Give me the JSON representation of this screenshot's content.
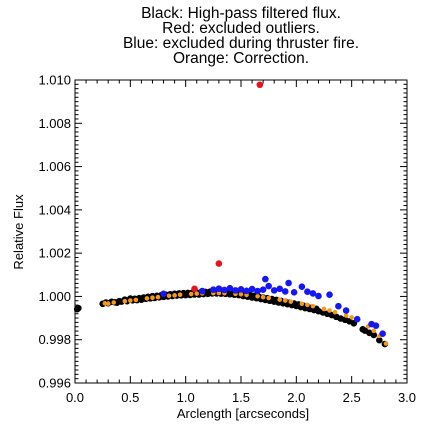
{
  "chart_data": {
    "type": "scatter",
    "title_lines": [
      "Black: High-pass filtered flux.",
      "Red: excluded outliers.",
      "Blue: excluded during thruster fire.",
      "Orange: Correction."
    ],
    "xlabel": "Arclength [arcseconds]",
    "ylabel": "Relative Flux",
    "xlim": [
      0.0,
      3.0
    ],
    "ylim": [
      0.996,
      1.01
    ],
    "x_ticks": [
      "0.0",
      "0.5",
      "1.0",
      "1.5",
      "2.0",
      "2.5",
      "3.0"
    ],
    "x_tick_values": [
      0.0,
      0.5,
      1.0,
      1.5,
      2.0,
      2.5,
      3.0
    ],
    "y_ticks": [
      "0.996",
      "0.998",
      "1.000",
      "1.002",
      "1.004",
      "1.006",
      "1.008",
      "1.010"
    ],
    "y_tick_values": [
      0.996,
      0.998,
      1.0,
      1.002,
      1.004,
      1.006,
      1.008,
      1.01
    ],
    "grid": false,
    "colors": {
      "high_pass": "#000000",
      "outliers": "#e8141b",
      "thruster": "#1717f2",
      "correction": "#f39a1c"
    },
    "series": [
      {
        "key": "high_pass",
        "points": [
          [
            0.02,
            0.99941
          ],
          [
            0.03,
            0.99946
          ],
          [
            0.25,
            0.99966
          ],
          [
            0.28,
            0.99972
          ],
          [
            0.3,
            0.99969
          ],
          [
            0.33,
            0.99975
          ],
          [
            0.36,
            0.99973
          ],
          [
            0.38,
            0.99971
          ],
          [
            0.4,
            0.99978
          ],
          [
            0.42,
            0.99976
          ],
          [
            0.45,
            0.99985
          ],
          [
            0.47,
            0.99978
          ],
          [
            0.5,
            0.9999
          ],
          [
            0.52,
            0.99982
          ],
          [
            0.54,
            0.99989
          ],
          [
            0.56,
            0.99983
          ],
          [
            0.58,
            0.99992
          ],
          [
            0.6,
            0.99985
          ],
          [
            0.62,
            0.99995
          ],
          [
            0.64,
            0.99989
          ],
          [
            0.66,
            0.99998
          ],
          [
            0.68,
            0.99991
          ],
          [
            0.7,
            1.00001
          ],
          [
            0.72,
            0.99993
          ],
          [
            0.74,
            1.00003
          ],
          [
            0.76,
            0.99996
          ],
          [
            0.78,
            1.00006
          ],
          [
            0.8,
            0.99998
          ],
          [
            0.82,
            1.00008
          ],
          [
            0.84,
            1.0
          ],
          [
            0.86,
            1.0001
          ],
          [
            0.88,
            1.00002
          ],
          [
            0.9,
            1.00012
          ],
          [
            0.92,
            1.00004
          ],
          [
            0.94,
            1.00014
          ],
          [
            0.96,
            1.00005
          ],
          [
            0.98,
            1.00015
          ],
          [
            1.0,
            1.00006
          ],
          [
            1.02,
            1.00016
          ],
          [
            1.04,
            1.00007
          ],
          [
            1.06,
            1.00017
          ],
          [
            1.08,
            1.00009
          ],
          [
            1.1,
            1.00018
          ],
          [
            1.12,
            1.00009
          ],
          [
            1.14,
            1.0002
          ],
          [
            1.16,
            1.00011
          ],
          [
            1.18,
            1.00021
          ],
          [
            1.2,
            1.00012
          ],
          [
            1.22,
            1.00022
          ],
          [
            1.24,
            1.00014
          ],
          [
            1.26,
            1.00023
          ],
          [
            1.28,
            1.00014
          ],
          [
            1.3,
            1.00022
          ],
          [
            1.32,
            1.00013
          ],
          [
            1.34,
            1.00021
          ],
          [
            1.36,
            1.00012
          ],
          [
            1.38,
            1.0002
          ],
          [
            1.4,
            1.0001
          ],
          [
            1.42,
            1.00019
          ],
          [
            1.44,
            1.00008
          ],
          [
            1.46,
            1.00016
          ],
          [
            1.48,
            1.00006
          ],
          [
            1.5,
            1.00014
          ],
          [
            1.52,
            1.00002
          ],
          [
            1.54,
            1.0001
          ],
          [
            1.56,
            0.99999
          ],
          [
            1.58,
            1.00007
          ],
          [
            1.6,
            0.99995
          ],
          [
            1.62,
            1.00003
          ],
          [
            1.64,
            0.99992
          ],
          [
            1.66,
            0.99999
          ],
          [
            1.68,
            0.99988
          ],
          [
            1.7,
            0.99995
          ],
          [
            1.72,
            0.99984
          ],
          [
            1.74,
            0.99992
          ],
          [
            1.76,
            0.9998
          ],
          [
            1.78,
            0.99988
          ],
          [
            1.8,
            0.99976
          ],
          [
            1.82,
            0.99984
          ],
          [
            1.84,
            0.99972
          ],
          [
            1.86,
            0.9998
          ],
          [
            1.88,
            0.99968
          ],
          [
            1.9,
            0.99976
          ],
          [
            1.92,
            0.99964
          ],
          [
            1.94,
            0.99971
          ],
          [
            1.96,
            0.9996
          ],
          [
            1.98,
            0.99967
          ],
          [
            2.0,
            0.99956
          ],
          [
            2.02,
            0.99963
          ],
          [
            2.04,
            0.99951
          ],
          [
            2.06,
            0.99958
          ],
          [
            2.08,
            0.99946
          ],
          [
            2.1,
            0.99953
          ],
          [
            2.12,
            0.99942
          ],
          [
            2.14,
            0.99948
          ],
          [
            2.16,
            0.99937
          ],
          [
            2.18,
            0.99943
          ],
          [
            2.2,
            0.99932
          ],
          [
            2.24,
            0.99926
          ],
          [
            2.28,
            0.9992
          ],
          [
            2.32,
            0.99914
          ],
          [
            2.36,
            0.99906
          ],
          [
            2.4,
            0.99898
          ],
          [
            2.44,
            0.99892
          ],
          [
            2.48,
            0.99885
          ],
          [
            2.52,
            0.99876
          ],
          [
            2.6,
            0.99848
          ],
          [
            2.62,
            0.99842
          ],
          [
            2.66,
            0.99832
          ],
          [
            2.7,
            0.99822
          ],
          [
            2.75,
            0.99798
          ],
          [
            2.8,
            0.9978
          ]
        ]
      },
      {
        "key": "correction",
        "points": [
          [
            0.27,
            0.99968
          ],
          [
            0.35,
            0.99972
          ],
          [
            0.45,
            0.99978
          ],
          [
            0.55,
            0.99984
          ],
          [
            0.65,
            0.99991
          ],
          [
            0.75,
            0.99997
          ],
          [
            0.85,
            1.00003
          ],
          [
            0.95,
            1.00008
          ],
          [
            1.05,
            1.00011
          ],
          [
            1.15,
            1.00014
          ],
          [
            1.25,
            1.00015
          ],
          [
            1.35,
            1.00015
          ],
          [
            1.45,
            1.00012
          ],
          [
            1.55,
            1.00007
          ],
          [
            1.65,
            1.00001
          ],
          [
            1.75,
            0.99993
          ],
          [
            1.85,
            0.99985
          ],
          [
            1.95,
            0.99976
          ],
          [
            2.05,
            0.99966
          ],
          [
            2.15,
            0.99955
          ],
          [
            2.25,
            0.99942
          ],
          [
            2.35,
            0.99927
          ],
          [
            2.45,
            0.99912
          ],
          [
            2.55,
            0.99893
          ],
          [
            2.65,
            0.99862
          ],
          [
            2.75,
            0.99818
          ],
          [
            2.81,
            0.99782
          ],
          [
            0.3,
            0.99967
          ],
          [
            0.5,
            0.99981
          ],
          [
            0.7,
            0.99994
          ],
          [
            0.9,
            1.00005
          ],
          [
            1.1,
            1.00013
          ],
          [
            1.3,
            1.00016
          ],
          [
            1.5,
            1.0001
          ],
          [
            1.7,
            0.99997
          ],
          [
            1.9,
            0.99981
          ],
          [
            2.1,
            0.99961
          ],
          [
            2.3,
            0.99935
          ],
          [
            2.5,
            0.99903
          ],
          [
            2.7,
            0.99841
          ]
        ]
      },
      {
        "key": "thruster",
        "points": [
          [
            0.8,
            1.00012
          ],
          [
            1.15,
            1.00025
          ],
          [
            1.25,
            1.00031
          ],
          [
            1.3,
            1.00036
          ],
          [
            1.35,
            1.0003
          ],
          [
            1.4,
            1.00038
          ],
          [
            1.45,
            1.00028
          ],
          [
            1.5,
            1.00033
          ],
          [
            1.55,
            1.00026
          ],
          [
            1.6,
            1.00034
          ],
          [
            1.65,
            1.00025
          ],
          [
            1.7,
            1.00031
          ],
          [
            1.72,
            1.0008
          ],
          [
            1.75,
            1.00048
          ],
          [
            1.8,
            1.00028
          ],
          [
            1.85,
            1.00035
          ],
          [
            1.9,
            1.00023
          ],
          [
            1.93,
            1.00062
          ],
          [
            1.98,
            1.00019
          ],
          [
            2.05,
            1.00045
          ],
          [
            2.1,
            1.00022
          ],
          [
            2.15,
            1.00014
          ],
          [
            2.2,
            1.00002
          ],
          [
            2.3,
            1.00008
          ],
          [
            2.38,
            0.99955
          ],
          [
            2.45,
            0.99935
          ],
          [
            2.55,
            0.99895
          ],
          [
            2.68,
            0.99872
          ],
          [
            2.72,
            0.99865
          ],
          [
            2.78,
            0.99828
          ]
        ]
      },
      {
        "key": "outliers",
        "points": [
          [
            1.67,
            1.00978
          ],
          [
            1.3,
            1.00152
          ],
          [
            1.08,
            1.00035
          ]
        ]
      }
    ]
  }
}
